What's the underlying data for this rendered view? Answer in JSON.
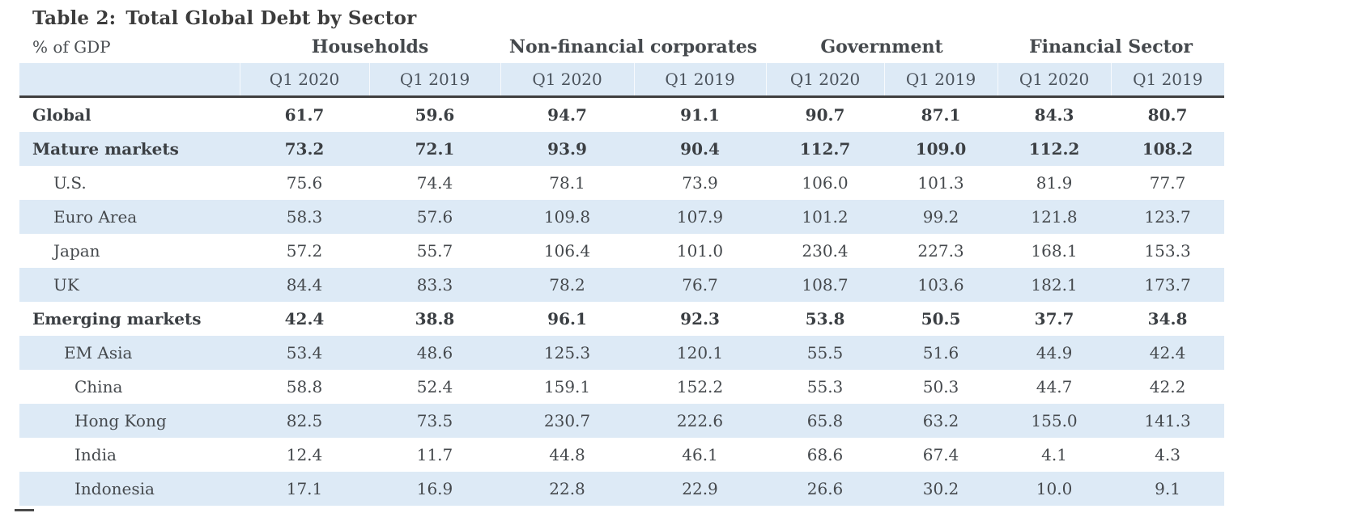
{
  "title": {
    "prefix": "Table 2:",
    "text": "Total Global Debt by Sector"
  },
  "unit_label": "% of GDP",
  "chart_data": {
    "type": "table",
    "title": "Table 2: Total Global Debt by Sector",
    "units": "% of GDP",
    "column_groups": [
      "Households",
      "Non-financial corporates",
      "Government",
      "Financial Sector"
    ],
    "sub_columns": [
      "Q1 2020",
      "Q1 2019"
    ],
    "columns": [
      "Households Q1 2020",
      "Households Q1 2019",
      "Non-financial corporates Q1 2020",
      "Non-financial corporates Q1 2019",
      "Government Q1 2020",
      "Government Q1 2019",
      "Financial Sector Q1 2020",
      "Financial Sector Q1 2019"
    ],
    "rows": [
      {
        "label": "Global",
        "bold": true,
        "indent": 0,
        "values": [
          "61.7",
          "59.6",
          "94.7",
          "91.1",
          "90.7",
          "87.1",
          "84.3",
          "80.7"
        ]
      },
      {
        "label": "Mature markets",
        "bold": true,
        "indent": 0,
        "values": [
          "73.2",
          "72.1",
          "93.9",
          "90.4",
          "112.7",
          "109.0",
          "112.2",
          "108.2"
        ]
      },
      {
        "label": "U.S.",
        "bold": false,
        "indent": 1,
        "values": [
          "75.6",
          "74.4",
          "78.1",
          "73.9",
          "106.0",
          "101.3",
          "81.9",
          "77.7"
        ]
      },
      {
        "label": "Euro Area",
        "bold": false,
        "indent": 1,
        "values": [
          "58.3",
          "57.6",
          "109.8",
          "107.9",
          "101.2",
          "99.2",
          "121.8",
          "123.7"
        ]
      },
      {
        "label": "Japan",
        "bold": false,
        "indent": 1,
        "values": [
          "57.2",
          "55.7",
          "106.4",
          "101.0",
          "230.4",
          "227.3",
          "168.1",
          "153.3"
        ]
      },
      {
        "label": "UK",
        "bold": false,
        "indent": 1,
        "values": [
          "84.4",
          "83.3",
          "78.2",
          "76.7",
          "108.7",
          "103.6",
          "182.1",
          "173.7"
        ]
      },
      {
        "label": "Emerging markets",
        "bold": true,
        "indent": 0,
        "values": [
          "42.4",
          "38.8",
          "96.1",
          "92.3",
          "53.8",
          "50.5",
          "37.7",
          "34.8"
        ]
      },
      {
        "label": "EM Asia",
        "bold": false,
        "indent": 1.5,
        "values": [
          "53.4",
          "48.6",
          "125.3",
          "120.1",
          "55.5",
          "51.6",
          "44.9",
          "42.4"
        ]
      },
      {
        "label": "China",
        "bold": false,
        "indent": 2,
        "values": [
          "58.8",
          "52.4",
          "159.1",
          "152.2",
          "55.3",
          "50.3",
          "44.7",
          "42.2"
        ]
      },
      {
        "label": "Hong Kong",
        "bold": false,
        "indent": 2,
        "values": [
          "82.5",
          "73.5",
          "230.7",
          "222.6",
          "65.8",
          "63.2",
          "155.0",
          "141.3"
        ]
      },
      {
        "label": "India",
        "bold": false,
        "indent": 2,
        "values": [
          "12.4",
          "11.7",
          "44.8",
          "46.1",
          "68.6",
          "67.4",
          "4.1",
          "4.3"
        ]
      },
      {
        "label": "Indonesia",
        "bold": false,
        "indent": 2,
        "values": [
          "17.1",
          "16.9",
          "22.8",
          "22.9",
          "26.6",
          "30.2",
          "10.0",
          "9.1"
        ]
      }
    ],
    "layout": {
      "stripe_color": "#ddeaf6",
      "heavy_rule_color": "#3f3f3f",
      "striping": "alternate rows starting white at Global"
    }
  }
}
